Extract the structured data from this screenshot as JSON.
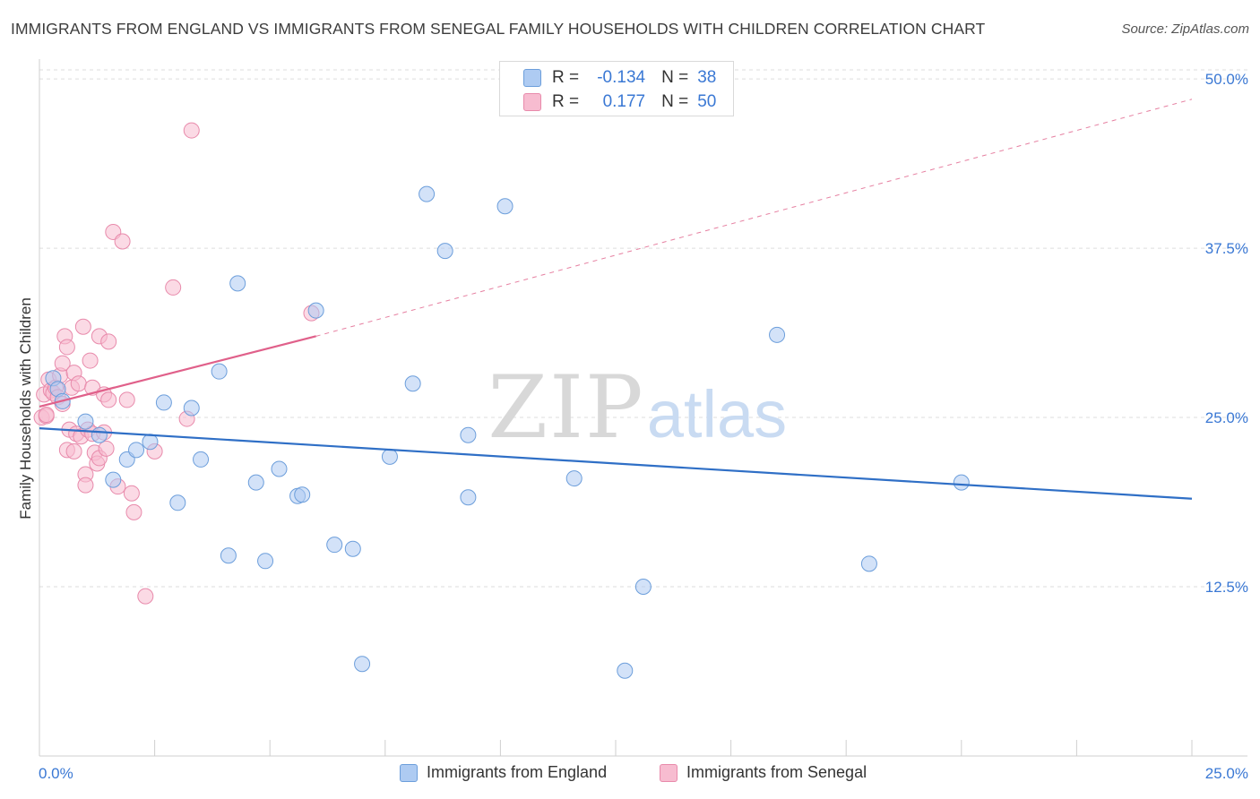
{
  "title": "IMMIGRANTS FROM ENGLAND VS IMMIGRANTS FROM SENEGAL FAMILY HOUSEHOLDS WITH CHILDREN CORRELATION CHART",
  "source": "Source: ZipAtlas.com",
  "watermark": {
    "zip": "ZIP",
    "atlas": "atlas"
  },
  "stats": [
    {
      "r_label": "R =",
      "r_value": "-0.134",
      "n_label": "N =",
      "n_value": "38"
    },
    {
      "r_label": "R =",
      "r_value": "0.177",
      "n_label": "N =",
      "n_value": "50"
    }
  ],
  "legend": [
    {
      "label": "Immigrants from England"
    },
    {
      "label": "Immigrants from Senegal"
    }
  ],
  "colors": {
    "england_fill": "#aecbf2",
    "england_stroke": "#6c9edb",
    "england_line": "#2f6fc6",
    "senegal_fill": "#f7bcd0",
    "senegal_stroke": "#e88aab",
    "senegal_line": "#e0608a",
    "axis_label": "#3a78d4",
    "grid": "#dddddd"
  },
  "chart_data": {
    "type": "scatter",
    "xlabel": "",
    "ylabel": "Family Households with Children",
    "xlim": [
      0,
      25
    ],
    "ylim": [
      0,
      51
    ],
    "x_tick_labels": [
      "0.0%",
      "25.0%"
    ],
    "y_ticks": [
      12.5,
      25.0,
      37.5,
      50.0
    ],
    "y_tick_labels": [
      "12.5%",
      "25.0%",
      "37.5%",
      "50.0%"
    ],
    "series": [
      {
        "name": "Immigrants from England",
        "points": [
          [
            0.3,
            27.9
          ],
          [
            0.4,
            27.1
          ],
          [
            0.5,
            26.2
          ],
          [
            1.0,
            24.7
          ],
          [
            1.3,
            23.7
          ],
          [
            1.6,
            20.4
          ],
          [
            1.9,
            21.9
          ],
          [
            2.1,
            22.6
          ],
          [
            2.4,
            23.2
          ],
          [
            2.7,
            26.1
          ],
          [
            3.0,
            18.7
          ],
          [
            3.3,
            25.7
          ],
          [
            3.5,
            21.9
          ],
          [
            3.9,
            28.4
          ],
          [
            4.1,
            14.8
          ],
          [
            4.3,
            34.9
          ],
          [
            4.7,
            20.2
          ],
          [
            4.9,
            14.4
          ],
          [
            5.2,
            21.2
          ],
          [
            5.6,
            19.2
          ],
          [
            5.7,
            19.3
          ],
          [
            6.0,
            32.9
          ],
          [
            6.4,
            15.6
          ],
          [
            6.8,
            15.3
          ],
          [
            7.0,
            6.8
          ],
          [
            7.6,
            22.1
          ],
          [
            8.1,
            27.5
          ],
          [
            8.4,
            41.5
          ],
          [
            8.8,
            37.3
          ],
          [
            9.3,
            23.7
          ],
          [
            9.3,
            19.1
          ],
          [
            10.1,
            40.6
          ],
          [
            11.6,
            20.5
          ],
          [
            12.7,
            6.3
          ],
          [
            13.1,
            12.5
          ],
          [
            16.0,
            31.1
          ],
          [
            18.0,
            14.2
          ],
          [
            20.0,
            20.2
          ]
        ],
        "trend": {
          "x": [
            0,
            25
          ],
          "y": [
            24.2,
            19.0
          ]
        }
      },
      {
        "name": "Immigrants from Senegal",
        "points": [
          [
            0.05,
            25.0
          ],
          [
            0.1,
            26.7
          ],
          [
            0.15,
            25.1
          ],
          [
            0.2,
            27.8
          ],
          [
            0.25,
            27.0
          ],
          [
            0.3,
            26.8
          ],
          [
            0.35,
            27.2
          ],
          [
            0.4,
            26.5
          ],
          [
            0.45,
            28.1
          ],
          [
            0.5,
            26.0
          ],
          [
            0.5,
            29.0
          ],
          [
            0.55,
            31.0
          ],
          [
            0.6,
            30.2
          ],
          [
            0.6,
            22.6
          ],
          [
            0.65,
            24.1
          ],
          [
            0.7,
            27.2
          ],
          [
            0.75,
            28.3
          ],
          [
            0.75,
            22.5
          ],
          [
            0.8,
            23.8
          ],
          [
            0.85,
            27.5
          ],
          [
            0.9,
            23.6
          ],
          [
            0.95,
            31.7
          ],
          [
            1.0,
            20.8
          ],
          [
            1.0,
            20.0
          ],
          [
            1.05,
            24.1
          ],
          [
            1.1,
            29.2
          ],
          [
            1.15,
            27.2
          ],
          [
            1.15,
            23.8
          ],
          [
            1.2,
            22.4
          ],
          [
            1.25,
            21.6
          ],
          [
            1.3,
            22.0
          ],
          [
            1.3,
            31.0
          ],
          [
            1.4,
            26.7
          ],
          [
            1.4,
            23.9
          ],
          [
            1.45,
            22.7
          ],
          [
            1.5,
            30.6
          ],
          [
            1.5,
            26.3
          ],
          [
            1.6,
            38.7
          ],
          [
            1.7,
            19.9
          ],
          [
            1.8,
            38.0
          ],
          [
            1.9,
            26.3
          ],
          [
            2.0,
            19.4
          ],
          [
            2.05,
            18.0
          ],
          [
            2.3,
            11.8
          ],
          [
            2.5,
            22.5
          ],
          [
            2.9,
            34.6
          ],
          [
            3.2,
            24.9
          ],
          [
            3.3,
            46.2
          ],
          [
            5.9,
            32.7
          ],
          [
            0.15,
            25.2
          ]
        ],
        "trend": {
          "x": [
            0,
            6.0
          ],
          "y": [
            25.8,
            31.0
          ]
        },
        "trend_dashed": {
          "x": [
            6.0,
            25
          ],
          "y": [
            31.0,
            48.5
          ]
        }
      }
    ]
  }
}
